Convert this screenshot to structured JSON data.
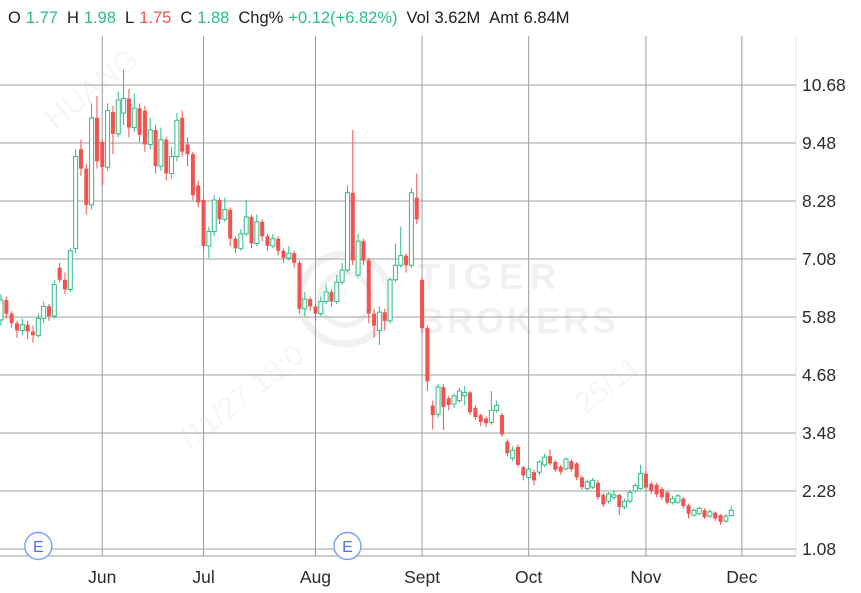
{
  "header": {
    "open_label": "O",
    "open_value": "1.77",
    "high_label": "H",
    "high_value": "1.98",
    "low_label": "L",
    "low_value": "1.75",
    "close_label": "C",
    "close_value": "1.88",
    "change_label": "Chg%",
    "change_value": "+0.12(+6.82%)",
    "volume_label": "Vol",
    "volume_value": "3.62M",
    "amount_label": "Amt",
    "amount_value": "6.84M"
  },
  "colors": {
    "up": "#2ebd85",
    "down": "#f4514f",
    "grid": "#999da1",
    "axis_border": "#e4e4e4",
    "axis_text": "#2b2b2b",
    "event_border": "#7d9df7",
    "event_text": "#4a74ee",
    "watermark": "#f1f1f1",
    "diagonal_watermark": "rgba(0,0,0,0.035)"
  },
  "watermark": {
    "line1": "TIGER",
    "line2": "BROKERS"
  },
  "diagonal_watermarks": [
    "HUANG",
    "/11/27 18:0",
    "25/11"
  ],
  "events": [
    {
      "label": "E",
      "candle_index": 7
    },
    {
      "label": "E",
      "candle_index": 65
    }
  ],
  "chart_data": {
    "type": "candlestick",
    "title": "",
    "ylim": [
      1.08,
      10.68
    ],
    "y_tick_labels": [
      "10.68",
      "9.48",
      "8.28",
      "7.08",
      "5.88",
      "4.68",
      "3.48",
      "2.28",
      "1.08"
    ],
    "x_tick_months": [
      {
        "label": "Jun",
        "candle_index": 19
      },
      {
        "label": "Jul",
        "candle_index": 38
      },
      {
        "label": "Aug",
        "candle_index": 59
      },
      {
        "label": "Sept",
        "candle_index": 79
      },
      {
        "label": "Oct",
        "candle_index": 99
      },
      {
        "label": "Nov",
        "candle_index": 121
      },
      {
        "label": "Dec",
        "candle_index": 139
      }
    ],
    "grid": true,
    "legend": "none",
    "ohlc_format": "[open, high, low, close]",
    "candles": [
      [
        5.82,
        6.35,
        5.7,
        6.23
      ],
      [
        6.23,
        6.3,
        5.85,
        5.95
      ],
      [
        5.95,
        6.0,
        5.65,
        5.75
      ],
      [
        5.75,
        5.8,
        5.45,
        5.6
      ],
      [
        5.6,
        5.85,
        5.5,
        5.72
      ],
      [
        5.72,
        5.8,
        5.42,
        5.58
      ],
      [
        5.58,
        5.7,
        5.35,
        5.5
      ],
      [
        5.5,
        5.95,
        5.45,
        5.85
      ],
      [
        5.85,
        6.2,
        5.75,
        6.1
      ],
      [
        6.1,
        6.15,
        5.8,
        5.9
      ],
      [
        5.9,
        6.65,
        5.85,
        6.55
      ],
      [
        6.9,
        7.0,
        6.6,
        6.65
      ],
      [
        6.65,
        6.8,
        6.35,
        6.45
      ],
      [
        6.45,
        7.3,
        6.4,
        7.25
      ],
      [
        7.3,
        9.35,
        7.2,
        9.2
      ],
      [
        9.35,
        9.55,
        8.8,
        8.95
      ],
      [
        8.95,
        9.05,
        8.0,
        8.2
      ],
      [
        8.2,
        10.3,
        8.1,
        10.0
      ],
      [
        10.0,
        10.45,
        8.95,
        9.1
      ],
      [
        9.5,
        9.55,
        8.6,
        8.98
      ],
      [
        8.98,
        10.3,
        8.9,
        10.15
      ],
      [
        10.12,
        10.25,
        9.25,
        9.67
      ],
      [
        9.67,
        10.55,
        9.6,
        10.37
      ],
      [
        10.1,
        11.0,
        9.85,
        10.4
      ],
      [
        10.4,
        10.6,
        9.6,
        9.8
      ],
      [
        9.8,
        10.5,
        9.7,
        10.2
      ],
      [
        10.2,
        10.3,
        9.5,
        9.65
      ],
      [
        10.15,
        10.25,
        9.3,
        9.45
      ],
      [
        9.45,
        10.0,
        9.35,
        9.75
      ],
      [
        9.75,
        9.85,
        8.85,
        9.0
      ],
      [
        9.0,
        9.8,
        8.9,
        9.55
      ],
      [
        9.55,
        9.6,
        8.7,
        8.85
      ],
      [
        8.85,
        9.4,
        8.75,
        9.2
      ],
      [
        9.2,
        10.1,
        9.1,
        9.95
      ],
      [
        10.0,
        10.15,
        9.2,
        9.3
      ],
      [
        9.45,
        9.6,
        9.0,
        9.25
      ],
      [
        9.25,
        9.3,
        8.3,
        8.4
      ],
      [
        8.6,
        8.7,
        8.15,
        8.25
      ],
      [
        8.3,
        8.35,
        7.25,
        7.35
      ],
      [
        7.35,
        7.75,
        7.1,
        7.65
      ],
      [
        7.65,
        8.4,
        7.55,
        8.3
      ],
      [
        8.3,
        8.35,
        7.8,
        7.9
      ],
      [
        7.9,
        8.35,
        7.85,
        8.1
      ],
      [
        8.1,
        8.15,
        7.35,
        7.5
      ],
      [
        7.5,
        7.55,
        7.2,
        7.3
      ],
      [
        7.3,
        7.7,
        7.25,
        7.6
      ],
      [
        7.6,
        8.3,
        7.55,
        7.95
      ],
      [
        7.95,
        8.0,
        7.3,
        7.4
      ],
      [
        7.4,
        8.0,
        7.35,
        7.85
      ],
      [
        7.85,
        7.9,
        7.45,
        7.55
      ],
      [
        7.55,
        7.6,
        7.25,
        7.35
      ],
      [
        7.35,
        7.6,
        7.3,
        7.5
      ],
      [
        7.5,
        7.55,
        7.15,
        7.25
      ],
      [
        7.25,
        7.3,
        7.0,
        7.1
      ],
      [
        7.1,
        7.35,
        7.05,
        7.2
      ],
      [
        7.2,
        7.25,
        6.9,
        7.0
      ],
      [
        7.0,
        7.05,
        5.95,
        6.05
      ],
      [
        6.05,
        6.4,
        5.9,
        6.25
      ],
      [
        6.25,
        6.3,
        6.0,
        6.1
      ],
      [
        6.1,
        6.15,
        5.8,
        5.95
      ],
      [
        5.95,
        6.3,
        5.9,
        6.2
      ],
      [
        6.2,
        6.55,
        6.15,
        6.4
      ],
      [
        6.4,
        6.45,
        6.1,
        6.2
      ],
      [
        6.2,
        6.75,
        6.15,
        6.6
      ],
      [
        6.6,
        7.0,
        6.55,
        6.85
      ],
      [
        6.85,
        8.6,
        6.8,
        8.45
      ],
      [
        8.45,
        9.75,
        6.95,
        7.05
      ],
      [
        6.75,
        7.6,
        6.7,
        7.45
      ],
      [
        7.45,
        7.5,
        6.95,
        7.05
      ],
      [
        7.05,
        7.1,
        5.75,
        5.95
      ],
      [
        5.95,
        6.05,
        5.45,
        5.7
      ],
      [
        5.6,
        6.1,
        5.3,
        5.98
      ],
      [
        5.98,
        6.05,
        5.6,
        5.8
      ],
      [
        5.8,
        6.7,
        5.75,
        6.65
      ],
      [
        6.65,
        7.4,
        6.6,
        6.95
      ],
      [
        6.95,
        7.75,
        6.9,
        7.15
      ],
      [
        7.15,
        7.2,
        6.8,
        6.95
      ],
      [
        6.95,
        8.55,
        6.9,
        8.45
      ],
      [
        8.35,
        8.85,
        7.8,
        7.9
      ],
      [
        6.65,
        6.7,
        5.55,
        5.65
      ],
      [
        5.65,
        5.7,
        4.35,
        4.55
      ],
      [
        4.05,
        4.15,
        3.55,
        3.85
      ],
      [
        3.87,
        4.5,
        3.8,
        4.43
      ],
      [
        4.43,
        4.5,
        3.54,
        4.02
      ],
      [
        4.2,
        4.25,
        3.95,
        4.06
      ],
      [
        4.08,
        4.3,
        4.0,
        4.25
      ],
      [
        4.15,
        4.42,
        4.1,
        4.35
      ],
      [
        4.25,
        4.45,
        4.05,
        4.32
      ],
      [
        4.32,
        4.35,
        3.85,
        3.91
      ],
      [
        4.0,
        4.05,
        3.75,
        3.81
      ],
      [
        3.85,
        3.88,
        3.62,
        3.71
      ],
      [
        3.78,
        3.82,
        3.6,
        3.68
      ],
      [
        3.7,
        4.35,
        3.65,
        3.95
      ],
      [
        3.95,
        4.15,
        3.9,
        4.05
      ],
      [
        3.85,
        3.9,
        3.4,
        3.45
      ],
      [
        3.3,
        3.35,
        3.0,
        3.06
      ],
      [
        2.96,
        3.2,
        2.9,
        3.12
      ],
      [
        3.19,
        3.24,
        2.78,
        2.82
      ],
      [
        2.77,
        2.8,
        2.5,
        2.6
      ],
      [
        2.56,
        2.78,
        2.52,
        2.73
      ],
      [
        2.67,
        2.72,
        2.4,
        2.5
      ],
      [
        2.67,
        2.92,
        2.6,
        2.88
      ],
      [
        2.82,
        3.05,
        2.78,
        2.98
      ],
      [
        3.0,
        3.14,
        2.8,
        2.85
      ],
      [
        2.88,
        2.92,
        2.68,
        2.72
      ],
      [
        2.78,
        2.82,
        2.62,
        2.68
      ],
      [
        2.74,
        2.98,
        2.7,
        2.94
      ],
      [
        2.9,
        2.94,
        2.68,
        2.73
      ],
      [
        2.85,
        2.88,
        2.5,
        2.56
      ],
      [
        2.56,
        2.6,
        2.3,
        2.36
      ],
      [
        2.33,
        2.52,
        2.28,
        2.47
      ],
      [
        2.36,
        2.55,
        2.32,
        2.5
      ],
      [
        2.45,
        2.5,
        2.1,
        2.15
      ],
      [
        2.2,
        2.24,
        1.95,
        2.0
      ],
      [
        2.07,
        2.26,
        2.02,
        2.22
      ],
      [
        2.15,
        2.3,
        2.1,
        2.2
      ],
      [
        2.2,
        2.22,
        1.78,
        1.95
      ],
      [
        1.95,
        2.12,
        1.9,
        2.07
      ],
      [
        2.07,
        2.3,
        2.02,
        2.25
      ],
      [
        2.28,
        2.44,
        2.24,
        2.39
      ],
      [
        2.33,
        2.82,
        2.3,
        2.64
      ],
      [
        2.64,
        2.7,
        2.28,
        2.35
      ],
      [
        2.43,
        2.48,
        2.22,
        2.28
      ],
      [
        2.41,
        2.45,
        2.15,
        2.21
      ],
      [
        2.32,
        2.36,
        2.1,
        2.15
      ],
      [
        2.25,
        2.28,
        2.0,
        2.04
      ],
      [
        2.04,
        2.18,
        2.0,
        2.12
      ],
      [
        2.05,
        2.22,
        2.02,
        2.18
      ],
      [
        2.12,
        2.16,
        1.92,
        1.97
      ],
      [
        1.98,
        2.02,
        1.71,
        1.81
      ],
      [
        1.78,
        1.92,
        1.75,
        1.88
      ],
      [
        1.81,
        1.96,
        1.78,
        1.92
      ],
      [
        1.88,
        1.92,
        1.7,
        1.74
      ],
      [
        1.76,
        1.9,
        1.72,
        1.85
      ],
      [
        1.83,
        1.86,
        1.66,
        1.71
      ],
      [
        1.78,
        1.8,
        1.58,
        1.64
      ],
      [
        1.66,
        1.8,
        1.62,
        1.76
      ],
      [
        1.77,
        1.98,
        1.75,
        1.88
      ]
    ]
  }
}
